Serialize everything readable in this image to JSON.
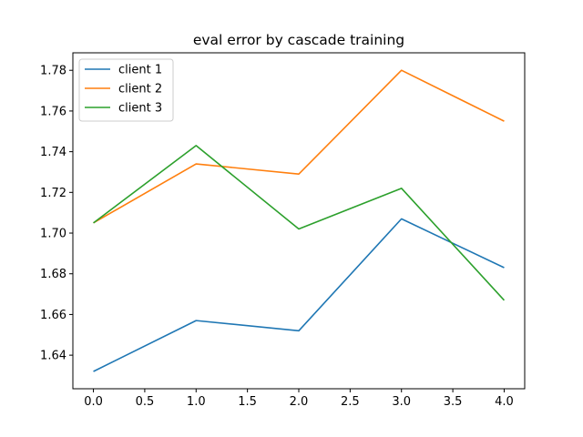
{
  "chart_data": {
    "type": "line",
    "title": "eval error by cascade training",
    "xlabel": "",
    "ylabel": "",
    "x": [
      0,
      1,
      2,
      3,
      4
    ],
    "xlim": [
      -0.2,
      4.2
    ],
    "ylim": [
      1.6235,
      1.7886
    ],
    "xticks": [
      0.0,
      0.5,
      1.0,
      1.5,
      2.0,
      2.5,
      3.0,
      3.5,
      4.0
    ],
    "xtick_labels": [
      "0.0",
      "0.5",
      "1.0",
      "1.5",
      "2.0",
      "2.5",
      "3.0",
      "3.5",
      "4.0"
    ],
    "yticks": [
      1.64,
      1.66,
      1.68,
      1.7,
      1.72,
      1.74,
      1.76,
      1.78
    ],
    "ytick_labels": [
      "1.64",
      "1.66",
      "1.68",
      "1.70",
      "1.72",
      "1.74",
      "1.76",
      "1.78"
    ],
    "grid": false,
    "legend_position": "top-left",
    "series": [
      {
        "name": "client 1",
        "color": "#1f77b4",
        "values": [
          1.632,
          1.657,
          1.652,
          1.707,
          1.683
        ]
      },
      {
        "name": "client 2",
        "color": "#ff7f0e",
        "values": [
          1.705,
          1.734,
          1.729,
          1.78,
          1.755
        ]
      },
      {
        "name": "client 3",
        "color": "#2ca02c",
        "values": [
          1.705,
          1.743,
          1.702,
          1.722,
          1.667
        ]
      }
    ]
  }
}
